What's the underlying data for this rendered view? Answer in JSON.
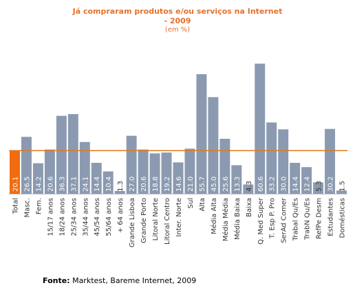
{
  "chart_data": {
    "type": "bar",
    "title": "Já compraram produtos e/ou serviços na Internet",
    "title_line2": "- 2009",
    "subtitle": "(em %)",
    "categories": [
      "Total",
      "Masc.",
      "Fem.",
      "15/17 anos",
      "18/24 anos",
      "25/34 anos",
      "35/44 anos",
      "45/54 anos",
      "55/64 anos",
      "+ 64 anos",
      "Grande Lisboa",
      "Grande Porto",
      "Litoral Norte",
      "Litoral Centro",
      "Inter. Norte",
      "Sul",
      "Alta",
      "Média Alta",
      "Média Média",
      "Média Baixa",
      "Baixa",
      "Q. Med Super",
      "T. Esp P. Pro",
      "SerAd Comer",
      "Trabal Qu/Es",
      "TrabN Qu/Es",
      "RefPe Desm",
      "Estudantes",
      "Domésticas"
    ],
    "values": [
      20.1,
      26.5,
      14.2,
      20.6,
      36.3,
      37.1,
      24.1,
      14.4,
      10.4,
      1.3,
      27.0,
      20.6,
      18.8,
      19.2,
      14.6,
      21.0,
      55.7,
      45.0,
      25.6,
      13.3,
      4.3,
      60.6,
      33.2,
      30.0,
      14.4,
      12.4,
      5.3,
      30.2,
      1.5
    ],
    "value_labels": [
      "20.1",
      "26.5",
      "14.2",
      "20.6",
      "36.3",
      "37.1",
      "24.1",
      "14.4",
      "10.4",
      "1.3",
      "27.0",
      "20.6",
      "18.8",
      "19.2",
      "14.6",
      "21.0",
      "55.7",
      "45.0",
      "25.6",
      "13.3",
      "4.3",
      "60.6",
      "33.2",
      "30.0",
      "14.4",
      "12.4",
      "5.3",
      "30.2",
      "1.5"
    ],
    "ylim": [
      0,
      64
    ],
    "reference_line": 20.1,
    "colors": {
      "highlight": "#f26b0f",
      "bar": "#8b9ab0",
      "reference": "#e0781e",
      "label_light": "#ffffff",
      "label_dark": "#333333"
    },
    "highlight_index": 0,
    "grid": false
  },
  "source": {
    "label": "Fonte:",
    "text": " Marktest, Bareme Internet, 2009"
  }
}
